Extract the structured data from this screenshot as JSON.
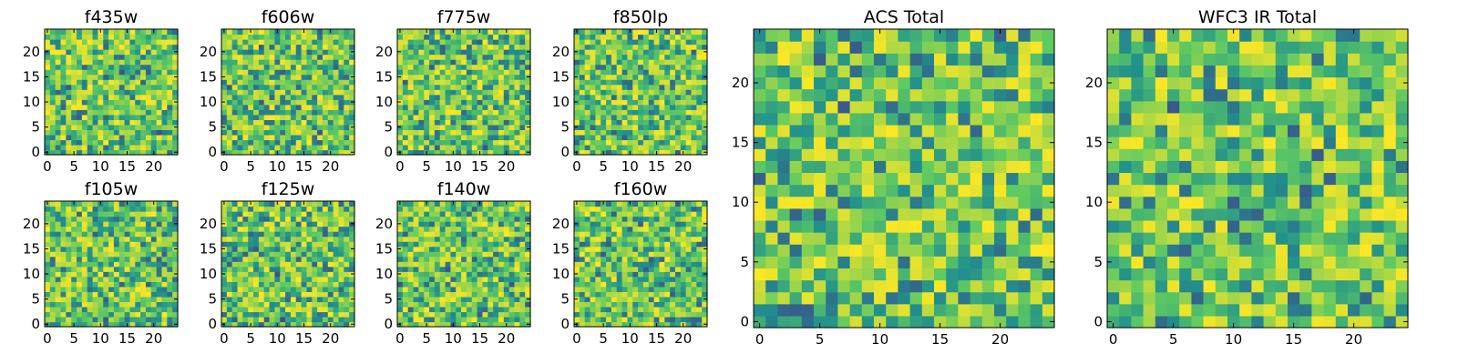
{
  "colormap": [
    "#440154",
    "#3b528b",
    "#21918c",
    "#5ec962",
    "#fde725"
  ],
  "chart_data": [
    {
      "type": "heatmap",
      "title": "f435w",
      "xticks": [
        0,
        5,
        10,
        15,
        20
      ],
      "yticks": [
        0,
        5,
        10,
        15,
        20
      ],
      "grid": false,
      "seed": 11
    },
    {
      "type": "heatmap",
      "title": "f606w",
      "xticks": [
        0,
        5,
        10,
        15,
        20
      ],
      "yticks": [
        0,
        5,
        10,
        15,
        20
      ],
      "grid": false,
      "seed": 23
    },
    {
      "type": "heatmap",
      "title": "f775w",
      "xticks": [
        0,
        5,
        10,
        15,
        20
      ],
      "yticks": [
        0,
        5,
        10,
        15,
        20
      ],
      "grid": false,
      "seed": 37
    },
    {
      "type": "heatmap",
      "title": "f850lp",
      "xticks": [
        0,
        5,
        10,
        15,
        20
      ],
      "yticks": [
        0,
        5,
        10,
        15,
        20
      ],
      "grid": false,
      "seed": 41
    },
    {
      "type": "heatmap",
      "title": "f105w",
      "xticks": [
        0,
        5,
        10,
        15,
        20
      ],
      "yticks": [
        0,
        5,
        10,
        15,
        20
      ],
      "grid": false,
      "seed": 53
    },
    {
      "type": "heatmap",
      "title": "f125w",
      "xticks": [
        0,
        5,
        10,
        15,
        20
      ],
      "yticks": [
        0,
        5,
        10,
        15,
        20
      ],
      "grid": false,
      "seed": 67
    },
    {
      "type": "heatmap",
      "title": "f140w",
      "xticks": [
        0,
        5,
        10,
        15,
        20
      ],
      "yticks": [
        0,
        5,
        10,
        15,
        20
      ],
      "grid": false,
      "seed": 71
    },
    {
      "type": "heatmap",
      "title": "f160w",
      "xticks": [
        0,
        5,
        10,
        15,
        20
      ],
      "yticks": [
        0,
        5,
        10,
        15,
        20
      ],
      "grid": false,
      "seed": 83
    },
    {
      "type": "heatmap",
      "title": "ACS Total",
      "xticks": [
        0,
        5,
        10,
        15,
        20
      ],
      "yticks": [
        0,
        5,
        10,
        15,
        20
      ],
      "grid": false,
      "seed": 97
    },
    {
      "type": "heatmap",
      "title": "WFC3 IR Total",
      "xticks": [
        0,
        5,
        10,
        15,
        20
      ],
      "yticks": [
        0,
        5,
        10,
        15,
        20
      ],
      "grid": false,
      "seed": 109
    }
  ]
}
